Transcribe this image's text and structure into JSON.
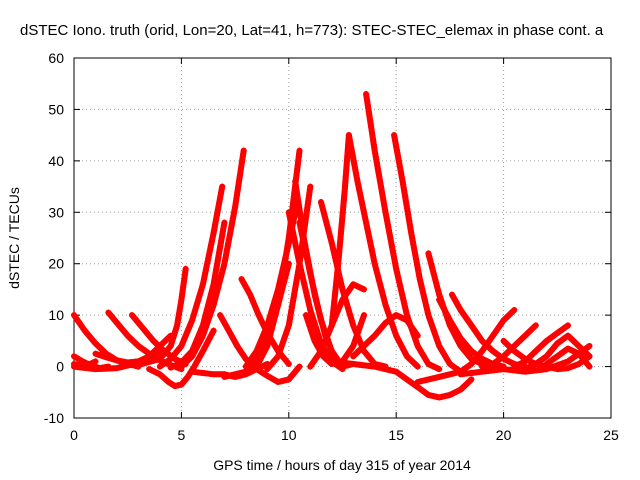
{
  "chart_data": {
    "type": "scatter",
    "title": "dSTEC Iono. truth (orid, Lon=20, Lat=41, h=773): STEC-STEC_elemax in phase cont. a",
    "xlabel": "GPS time / hours of day 315 of year 2014",
    "ylabel": "dSTEC  / TECUs",
    "xlim": [
      0,
      25
    ],
    "ylim": [
      -10,
      60
    ],
    "xticks": [
      0,
      5,
      10,
      15,
      20,
      25
    ],
    "yticks": [
      -10,
      0,
      10,
      20,
      30,
      40,
      50,
      60
    ],
    "grid": true,
    "legend": "none",
    "marker": "+",
    "color": "#ff0000",
    "series": [
      {
        "x": [
          0.0,
          0.5,
          1.0,
          1.5,
          2.0,
          2.5,
          3.0
        ],
        "y": [
          10.0,
          7.0,
          4.5,
          2.5,
          1.2,
          0.5,
          0.0
        ]
      },
      {
        "x": [
          0.0,
          0.4,
          0.8,
          1.2,
          1.6
        ],
        "y": [
          2.0,
          1.0,
          0.2,
          -0.3,
          0.0
        ]
      },
      {
        "x": [
          0.0,
          1.0,
          2.0,
          2.8,
          3.5,
          4.0
        ],
        "y": [
          0.0,
          -0.5,
          -0.3,
          0.5,
          1.5,
          3.0
        ]
      },
      {
        "x": [
          0.0,
          0.5,
          1.0
        ],
        "y": [
          0.5,
          0.0,
          1.0
        ]
      },
      {
        "x": [
          1.0,
          1.5,
          2.0,
          2.5,
          3.0,
          3.5,
          4.0,
          4.5
        ],
        "y": [
          2.5,
          1.8,
          1.2,
          0.8,
          1.0,
          2.0,
          4.0,
          6.0
        ]
      },
      {
        "x": [
          1.6,
          2.0,
          2.5,
          3.0,
          3.5,
          4.0,
          4.5,
          5.0
        ],
        "y": [
          10.5,
          8.5,
          6.0,
          4.0,
          2.5,
          1.2,
          0.3,
          -0.5
        ]
      },
      {
        "x": [
          2.7,
          3.2,
          3.7,
          4.2,
          4.7,
          5.2
        ],
        "y": [
          10.0,
          7.5,
          5.0,
          3.0,
          1.5,
          0.5
        ]
      },
      {
        "x": [
          3.5,
          4.0,
          4.4,
          4.7,
          5.0,
          5.3,
          5.6,
          6.0,
          6.5
        ],
        "y": [
          -0.5,
          -1.5,
          -3.0,
          -3.8,
          -3.5,
          -2.0,
          0.0,
          3.0,
          7.0
        ]
      },
      {
        "x": [
          3.0,
          4.0,
          4.5,
          4.8,
          5.0,
          5.2
        ],
        "y": [
          0.3,
          1.5,
          4.0,
          8.0,
          13.0,
          19.0
        ]
      },
      {
        "x": [
          4.0,
          4.5,
          5.0,
          5.5,
          6.0,
          6.5,
          6.9
        ],
        "y": [
          0.0,
          1.5,
          4.0,
          9.0,
          16.0,
          26.0,
          35.0
        ]
      },
      {
        "x": [
          4.5,
          5.0,
          5.5,
          6.0,
          6.5,
          7.0
        ],
        "y": [
          -0.2,
          0.8,
          3.0,
          8.0,
          16.0,
          28.0
        ]
      },
      {
        "x": [
          5.0,
          5.5,
          6.0,
          6.5,
          7.0,
          7.5,
          7.9
        ],
        "y": [
          0.0,
          2.0,
          6.0,
          12.0,
          20.0,
          31.0,
          42.0
        ]
      },
      {
        "x": [
          5.5,
          6.5,
          7.0,
          7.5,
          8.0,
          8.5,
          9.0
        ],
        "y": [
          -1.0,
          -1.5,
          -1.5,
          -2.0,
          -1.5,
          -0.5,
          0.5
        ]
      },
      {
        "x": [
          6.8,
          7.2,
          7.6,
          8.0,
          8.5,
          9.0,
          9.5,
          10.0,
          10.5
        ],
        "y": [
          10.0,
          7.0,
          4.0,
          1.5,
          -0.5,
          -1.8,
          -3.0,
          -2.5,
          0.0
        ]
      },
      {
        "x": [
          7.8,
          8.2,
          8.6,
          9.0,
          9.5,
          10.0
        ],
        "y": [
          17.0,
          14.0,
          10.0,
          6.5,
          3.0,
          0.5
        ]
      },
      {
        "x": [
          7.0,
          8.0,
          8.5,
          9.0,
          9.5,
          10.0
        ],
        "y": [
          -2.0,
          -1.0,
          1.5,
          6.0,
          12.0,
          20.0
        ]
      },
      {
        "x": [
          8.0,
          8.5,
          9.0,
          9.5,
          10.0,
          10.4
        ],
        "y": [
          0.0,
          3.0,
          8.0,
          15.0,
          24.0,
          32.0
        ]
      },
      {
        "x": [
          8.5,
          9.0,
          9.5,
          10.0,
          10.5
        ],
        "y": [
          0.0,
          4.0,
          12.0,
          25.0,
          42.0
        ]
      },
      {
        "x": [
          9.0,
          9.5,
          10.0,
          10.5,
          11.0
        ],
        "y": [
          -0.5,
          2.0,
          8.0,
          20.0,
          35.0
        ]
      },
      {
        "x": [
          10.3,
          10.7,
          11.2,
          11.7,
          12.2
        ],
        "y": [
          36.0,
          25.0,
          14.0,
          6.0,
          1.0
        ]
      },
      {
        "x": [
          10.0,
          10.5,
          11.0,
          11.5,
          12.0,
          12.5
        ],
        "y": [
          30.0,
          20.0,
          11.0,
          4.5,
          1.0,
          -0.5
        ]
      },
      {
        "x": [
          10.5,
          11.0,
          11.5,
          12.0,
          12.5,
          13.0
        ],
        "y": [
          28.0,
          18.0,
          9.0,
          3.0,
          0.0,
          0.5
        ]
      },
      {
        "x": [
          10.8,
          11.2,
          11.6,
          12.0,
          12.5,
          13.0,
          13.5
        ],
        "y": [
          10.0,
          5.0,
          2.0,
          0.5,
          1.0,
          4.0,
          10.0
        ]
      },
      {
        "x": [
          11.5,
          12.0,
          12.5,
          13.0,
          13.5,
          14.0,
          14.5
        ],
        "y": [
          32.0,
          24.0,
          15.0,
          8.0,
          3.0,
          0.5,
          0.0
        ]
      },
      {
        "x": [
          12.0,
          12.3,
          12.6,
          12.8
        ],
        "y": [
          8.0,
          20.0,
          34.0,
          45.0
        ]
      },
      {
        "x": [
          11.0,
          11.5,
          12.0,
          12.5,
          13.0,
          13.5
        ],
        "y": [
          0.0,
          3.0,
          8.0,
          13.0,
          16.0,
          15.0
        ]
      },
      {
        "x": [
          12.8,
          13.2,
          13.6,
          14.0,
          14.5,
          15.0,
          15.5,
          16.0
        ],
        "y": [
          45.0,
          36.0,
          28.0,
          20.0,
          12.0,
          6.0,
          2.0,
          0.0
        ]
      },
      {
        "x": [
          13.6,
          14.0,
          14.5,
          15.0,
          15.5,
          16.0,
          16.5,
          17.0
        ],
        "y": [
          53.0,
          42.0,
          30.0,
          19.0,
          10.0,
          4.0,
          0.5,
          -0.5
        ]
      },
      {
        "x": [
          14.9,
          15.3,
          15.7,
          16.1,
          16.5,
          17.0,
          17.5,
          18.0
        ],
        "y": [
          45.0,
          36.0,
          26.0,
          17.0,
          10.0,
          4.0,
          0.5,
          -1.0
        ]
      },
      {
        "x": [
          12.0,
          13.0,
          14.0,
          15.0,
          15.5,
          16.0,
          16.5,
          17.0,
          17.5,
          18.0,
          18.5
        ],
        "y": [
          1.0,
          0.5,
          0.0,
          -1.0,
          -2.5,
          -4.0,
          -5.5,
          -6.0,
          -5.5,
          -4.5,
          -2.5
        ]
      },
      {
        "x": [
          13.0,
          14.0,
          14.5,
          15.0,
          15.5,
          16.0
        ],
        "y": [
          2.0,
          6.0,
          8.5,
          10.0,
          9.0,
          6.0
        ]
      },
      {
        "x": [
          16.5,
          17.0,
          17.5,
          18.0,
          18.5,
          19.0,
          19.5
        ],
        "y": [
          22.0,
          14.0,
          8.0,
          4.0,
          1.5,
          0.5,
          0.0
        ]
      },
      {
        "x": [
          17.0,
          17.5,
          18.0,
          18.5,
          19.0,
          19.5,
          20.0
        ],
        "y": [
          13.0,
          9.0,
          5.5,
          3.0,
          1.5,
          0.5,
          0.0
        ]
      },
      {
        "x": [
          17.6,
          18.0,
          18.5,
          19.0,
          19.5,
          20.0,
          20.5,
          21.0
        ],
        "y": [
          14.0,
          11.0,
          8.0,
          5.0,
          3.0,
          1.5,
          0.5,
          0.0
        ]
      },
      {
        "x": [
          16.0,
          17.0,
          18.0,
          18.5,
          19.0,
          19.5,
          20.0,
          20.5
        ],
        "y": [
          -3.0,
          -2.0,
          -1.0,
          0.5,
          3.0,
          6.0,
          9.0,
          11.0
        ]
      },
      {
        "x": [
          18.0,
          19.0,
          20.0,
          21.0,
          22.0,
          23.0,
          24.0
        ],
        "y": [
          -1.5,
          -1.0,
          -0.5,
          -1.0,
          -0.5,
          1.0,
          4.0
        ]
      },
      {
        "x": [
          19.0,
          19.5,
          20.0,
          20.5,
          21.0,
          21.5
        ],
        "y": [
          0.0,
          0.5,
          2.0,
          4.0,
          6.0,
          8.0
        ]
      },
      {
        "x": [
          20.0,
          20.5,
          21.0,
          21.5,
          22.0,
          22.5,
          23.0,
          23.5,
          24.0
        ],
        "y": [
          5.0,
          3.0,
          1.5,
          0.5,
          0.0,
          -0.5,
          -0.3,
          0.5,
          2.0
        ]
      },
      {
        "x": [
          20.5,
          21.0,
          21.5,
          22.0,
          22.5,
          23.0
        ],
        "y": [
          0.0,
          1.0,
          3.0,
          5.0,
          6.5,
          8.0
        ]
      },
      {
        "x": [
          21.0,
          21.5,
          22.0,
          22.5,
          23.0,
          23.5,
          24.0
        ],
        "y": [
          -0.5,
          0.5,
          2.0,
          4.5,
          6.0,
          4.0,
          2.0
        ]
      },
      {
        "x": [
          22.0,
          22.5,
          23.0,
          23.5,
          24.0
        ],
        "y": [
          0.5,
          2.0,
          3.5,
          2.5,
          0.0
        ]
      }
    ]
  }
}
